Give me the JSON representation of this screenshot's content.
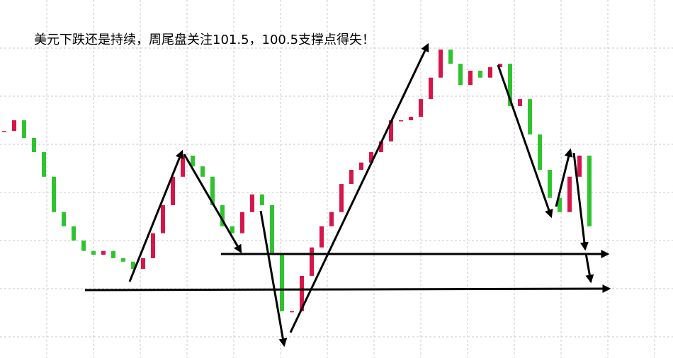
{
  "chart_data": {
    "type": "candlestick",
    "title": "美元下跌还是持续，周尾盘关注101.5，100.5支撑点得失！",
    "values": [
      105.05,
      105.36,
      104.85,
      104.44,
      103.73,
      102.71,
      102.3,
      101.89,
      101.59,
      101.48,
      101.59,
      101.38,
      101.28,
      101.07,
      101.38,
      102.1,
      102.91,
      103.73,
      104.34,
      104.03,
      103.73,
      102.91,
      102.3,
      102.1,
      102.71,
      103.22,
      102.91,
      101.48,
      99.85,
      99.85,
      100.87,
      101.69,
      102.3,
      102.71,
      103.52,
      103.93,
      104.14,
      104.44,
      104.75,
      105.36,
      105.36,
      105.46,
      105.97,
      106.59,
      107.4,
      106.99,
      106.38,
      106.79,
      106.59,
      106.89,
      106.99,
      105.77,
      105.97,
      104.95,
      103.93,
      103.12,
      102.71,
      103.73,
      104.34,
      102.3
    ],
    "ylim": [
      98.5,
      108.83
    ],
    "up_color": "#d6154b",
    "down_color": "#2fc42f",
    "grid": true
  }
}
